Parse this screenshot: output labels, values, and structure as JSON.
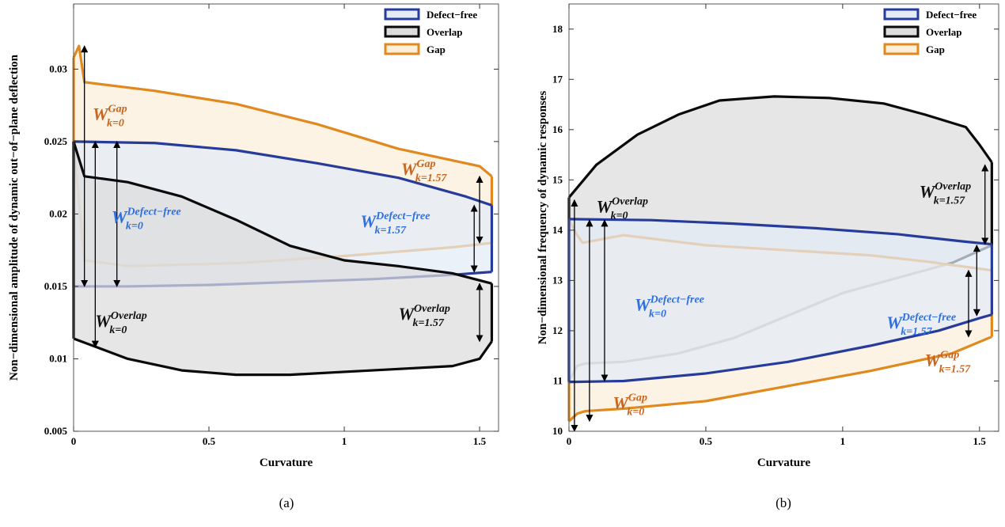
{
  "chart_data": [
    {
      "type": "area",
      "caption": "(a)",
      "xlabel": "Curvature",
      "ylabel": "Non−dimensional amplitude of dynamic out−of−plane deflection",
      "xlim": [
        0,
        1.57
      ],
      "ylim": [
        0.005,
        0.0345
      ],
      "xticks": [
        {
          "v": 0,
          "label": "0"
        },
        {
          "v": 0.5,
          "label": "0.5"
        },
        {
          "v": 1,
          "label": "1"
        },
        {
          "v": 1.5,
          "label": "1.5"
        }
      ],
      "yticks": [
        {
          "v": 0.005,
          "label": "0.005"
        },
        {
          "v": 0.01,
          "label": "0.01"
        },
        {
          "v": 0.015,
          "label": "0.015"
        },
        {
          "v": 0.02,
          "label": "0.02"
        },
        {
          "v": 0.025,
          "label": "0.025"
        },
        {
          "v": 0.03,
          "label": "0.03"
        }
      ],
      "legend": [
        "Defect−free",
        "Overlap",
        "Gap"
      ],
      "legend_position": "top-right",
      "grid": false,
      "series": [
        {
          "name": "Gap",
          "color": "#e0891e",
          "fill": "#fbefd9",
          "upper": [
            [
              0,
              0.0308
            ],
            [
              0.02,
              0.0316
            ],
            [
              0.04,
              0.0291
            ],
            [
              0.3,
              0.0285
            ],
            [
              0.6,
              0.0276
            ],
            [
              0.9,
              0.0262
            ],
            [
              1.2,
              0.0245
            ],
            [
              1.5,
              0.0233
            ],
            [
              1.545,
              0.0226
            ]
          ],
          "lower": [
            [
              0,
              0.0249
            ],
            [
              0.04,
              0.0168
            ],
            [
              0.2,
              0.0164
            ],
            [
              0.6,
              0.0166
            ],
            [
              1.0,
              0.0171
            ],
            [
              1.4,
              0.0177
            ],
            [
              1.545,
              0.018
            ]
          ],
          "right_edge": [
            0.018,
            0.0226
          ],
          "left_edge": [
            0.0249,
            0.0308
          ]
        },
        {
          "name": "Defect−free",
          "color": "#273c9a",
          "fill": "#e3ecf6",
          "upper": [
            [
              0,
              0.025
            ],
            [
              0.3,
              0.0249
            ],
            [
              0.6,
              0.0244
            ],
            [
              0.9,
              0.0235
            ],
            [
              1.2,
              0.0225
            ],
            [
              1.45,
              0.0212
            ],
            [
              1.545,
              0.0206
            ]
          ],
          "lower": [
            [
              0,
              0.015
            ],
            [
              0.2,
              0.015
            ],
            [
              0.5,
              0.0151
            ],
            [
              0.8,
              0.0153
            ],
            [
              1.1,
              0.0155
            ],
            [
              1.4,
              0.0158
            ],
            [
              1.545,
              0.016
            ]
          ],
          "right_edge": [
            0.016,
            0.0206
          ],
          "left_edge": [
            0.015,
            0.025
          ]
        },
        {
          "name": "Overlap",
          "color": "#0a0a0a",
          "fill": "#dcdcdc",
          "upper": [
            [
              0,
              0.025
            ],
            [
              0.02,
              0.0238
            ],
            [
              0.04,
              0.0226
            ],
            [
              0.2,
              0.0222
            ],
            [
              0.4,
              0.0212
            ],
            [
              0.6,
              0.0196
            ],
            [
              0.8,
              0.0178
            ],
            [
              1.0,
              0.0168
            ],
            [
              1.2,
              0.0164
            ],
            [
              1.4,
              0.0159
            ],
            [
              1.545,
              0.0152
            ]
          ],
          "lower": [
            [
              0,
              0.0114
            ],
            [
              0.2,
              0.01
            ],
            [
              0.4,
              0.0092
            ],
            [
              0.6,
              0.0089
            ],
            [
              0.8,
              0.0089
            ],
            [
              1.0,
              0.0091
            ],
            [
              1.2,
              0.0093
            ],
            [
              1.4,
              0.0095
            ],
            [
              1.5,
              0.01
            ],
            [
              1.545,
              0.0112
            ]
          ],
          "right_edge": [
            0.0112,
            0.0152
          ],
          "left_edge": [
            0.0114,
            0.025
          ]
        }
      ],
      "annotations": [
        {
          "base": "W",
          "sup": "Gap",
          "sub": "k=0",
          "color": "#c8651e",
          "at": [
            0.07,
            0.0265
          ]
        },
        {
          "base": "W",
          "sup": "Defect−free",
          "sub": "k=0",
          "color": "#2f6fe0",
          "at": [
            0.14,
            0.0194
          ]
        },
        {
          "base": "W",
          "sup": "Overlap",
          "sub": "k=0",
          "color": "#111111",
          "at": [
            0.08,
            0.0122
          ]
        },
        {
          "base": "W",
          "sup": "Gap",
          "sub": "k=1.57",
          "color": "#c8651e",
          "at": [
            1.21,
            0.0227
          ]
        },
        {
          "base": "W",
          "sup": "Defect−free",
          "sub": "k=1.57",
          "color": "#2f6fe0",
          "at": [
            1.06,
            0.0191
          ]
        },
        {
          "base": "W",
          "sup": "Overlap",
          "sub": "k=1.57",
          "color": "#111111",
          "at": [
            1.2,
            0.0127
          ]
        }
      ],
      "arrows": [
        {
          "x": 0.04,
          "y1": 0.0316,
          "y2": 0.015
        },
        {
          "x": 0.16,
          "y1": 0.025,
          "y2": 0.015
        },
        {
          "x": 0.08,
          "y1": 0.025,
          "y2": 0.0108
        },
        {
          "x": 1.5,
          "y1": 0.0226,
          "y2": 0.018
        },
        {
          "x": 1.48,
          "y1": 0.0206,
          "y2": 0.016
        },
        {
          "x": 1.5,
          "y1": 0.0152,
          "y2": 0.0112
        }
      ]
    },
    {
      "type": "area",
      "caption": "(b)",
      "xlabel": "Curvature",
      "ylabel": "Non−dimensional frequency of dynamic responses",
      "xlim": [
        0,
        1.57
      ],
      "ylim": [
        10,
        18.5
      ],
      "xticks": [
        {
          "v": 0,
          "label": "0"
        },
        {
          "v": 0.5,
          "label": "0.5"
        },
        {
          "v": 1,
          "label": "1"
        },
        {
          "v": 1.5,
          "label": "1.5"
        }
      ],
      "yticks": [
        {
          "v": 10,
          "label": "10"
        },
        {
          "v": 11,
          "label": "11"
        },
        {
          "v": 12,
          "label": "12"
        },
        {
          "v": 13,
          "label": "13"
        },
        {
          "v": 14,
          "label": "14"
        },
        {
          "v": 15,
          "label": "15"
        },
        {
          "v": 16,
          "label": "16"
        },
        {
          "v": 17,
          "label": "17"
        },
        {
          "v": 18,
          "label": "18"
        }
      ],
      "legend": [
        "Defect−free",
        "Overlap",
        "Gap"
      ],
      "legend_position": "top-right",
      "grid": false,
      "series": [
        {
          "name": "Overlap",
          "color": "#0a0a0a",
          "fill": "#dcdcdc",
          "upper": [
            [
              0,
              14.65
            ],
            [
              0.1,
              15.3
            ],
            [
              0.25,
              15.9
            ],
            [
              0.4,
              16.3
            ],
            [
              0.55,
              16.58
            ],
            [
              0.75,
              16.66
            ],
            [
              0.95,
              16.63
            ],
            [
              1.15,
              16.52
            ],
            [
              1.3,
              16.3
            ],
            [
              1.45,
              16.05
            ],
            [
              1.5,
              15.7
            ],
            [
              1.545,
              15.35
            ]
          ],
          "lower": [
            [
              0,
              11.0
            ],
            [
              0.03,
              11.3
            ],
            [
              0.06,
              11.35
            ],
            [
              0.2,
              11.38
            ],
            [
              0.4,
              11.55
            ],
            [
              0.6,
              11.85
            ],
            [
              0.8,
              12.3
            ],
            [
              1.0,
              12.75
            ],
            [
              1.2,
              13.05
            ],
            [
              1.4,
              13.35
            ],
            [
              1.545,
              13.7
            ]
          ],
          "right_edge": [
            13.7,
            15.35
          ],
          "left_edge": [
            11.0,
            14.65
          ]
        },
        {
          "name": "Gap",
          "color": "#e0891e",
          "fill": "#fbefd9",
          "upper": [
            [
              0,
              14.2
            ],
            [
              0.03,
              13.9
            ],
            [
              0.05,
              13.75
            ],
            [
              0.2,
              13.9
            ],
            [
              0.5,
              13.7
            ],
            [
              0.8,
              13.6
            ],
            [
              1.1,
              13.5
            ],
            [
              1.3,
              13.38
            ],
            [
              1.545,
              13.2
            ]
          ],
          "lower": [
            [
              0,
              10.2
            ],
            [
              0.03,
              10.35
            ],
            [
              0.06,
              10.4
            ],
            [
              0.2,
              10.45
            ],
            [
              0.5,
              10.6
            ],
            [
              0.8,
              10.9
            ],
            [
              1.1,
              11.2
            ],
            [
              1.4,
              11.55
            ],
            [
              1.545,
              11.88
            ]
          ],
          "right_edge": [
            11.88,
            13.2
          ],
          "left_edge": [
            10.2,
            14.2
          ]
        },
        {
          "name": "Defect−free",
          "color": "#273c9a",
          "fill": "#e3ecf6",
          "upper": [
            [
              0,
              14.22
            ],
            [
              0.3,
              14.2
            ],
            [
              0.6,
              14.13
            ],
            [
              0.9,
              14.04
            ],
            [
              1.2,
              13.92
            ],
            [
              1.45,
              13.77
            ],
            [
              1.545,
              13.72
            ]
          ],
          "lower": [
            [
              0,
              10.98
            ],
            [
              0.2,
              11.0
            ],
            [
              0.5,
              11.15
            ],
            [
              0.8,
              11.38
            ],
            [
              1.1,
              11.7
            ],
            [
              1.35,
              12.0
            ],
            [
              1.5,
              12.25
            ],
            [
              1.545,
              12.32
            ]
          ],
          "right_edge": [
            12.32,
            13.72
          ],
          "left_edge": [
            10.98,
            14.22
          ]
        }
      ],
      "annotations": [
        {
          "base": "W",
          "sup": "Overlap",
          "sub": "k=0",
          "color": "#111111",
          "at": [
            0.1,
            14.35
          ]
        },
        {
          "base": "W",
          "sup": "Defect−free",
          "sub": "k=0",
          "color": "#2f6fe0",
          "at": [
            0.24,
            12.4
          ]
        },
        {
          "base": "W",
          "sup": "Gap",
          "sub": "k=0",
          "color": "#c8651e",
          "at": [
            0.16,
            10.45
          ]
        },
        {
          "base": "W",
          "sup": "Overlap",
          "sub": "k=1.57",
          "color": "#111111",
          "at": [
            1.28,
            14.65
          ]
        },
        {
          "base": "W",
          "sup": "Defect−free",
          "sub": "k=1.57",
          "color": "#2f6fe0",
          "at": [
            1.16,
            12.05
          ]
        },
        {
          "base": "W",
          "sup": "Gap",
          "sub": "k=1.57",
          "color": "#c8651e",
          "at": [
            1.3,
            11.3
          ]
        }
      ],
      "arrows": [
        {
          "x": 0.02,
          "y1": 14.6,
          "y2": 10.0
        },
        {
          "x": 0.075,
          "y1": 14.2,
          "y2": 10.2
        },
        {
          "x": 0.13,
          "y1": 14.2,
          "y2": 11.0
        },
        {
          "x": 1.52,
          "y1": 15.3,
          "y2": 13.72
        },
        {
          "x": 1.49,
          "y1": 13.7,
          "y2": 12.3
        },
        {
          "x": 1.46,
          "y1": 13.2,
          "y2": 11.88
        }
      ]
    }
  ]
}
